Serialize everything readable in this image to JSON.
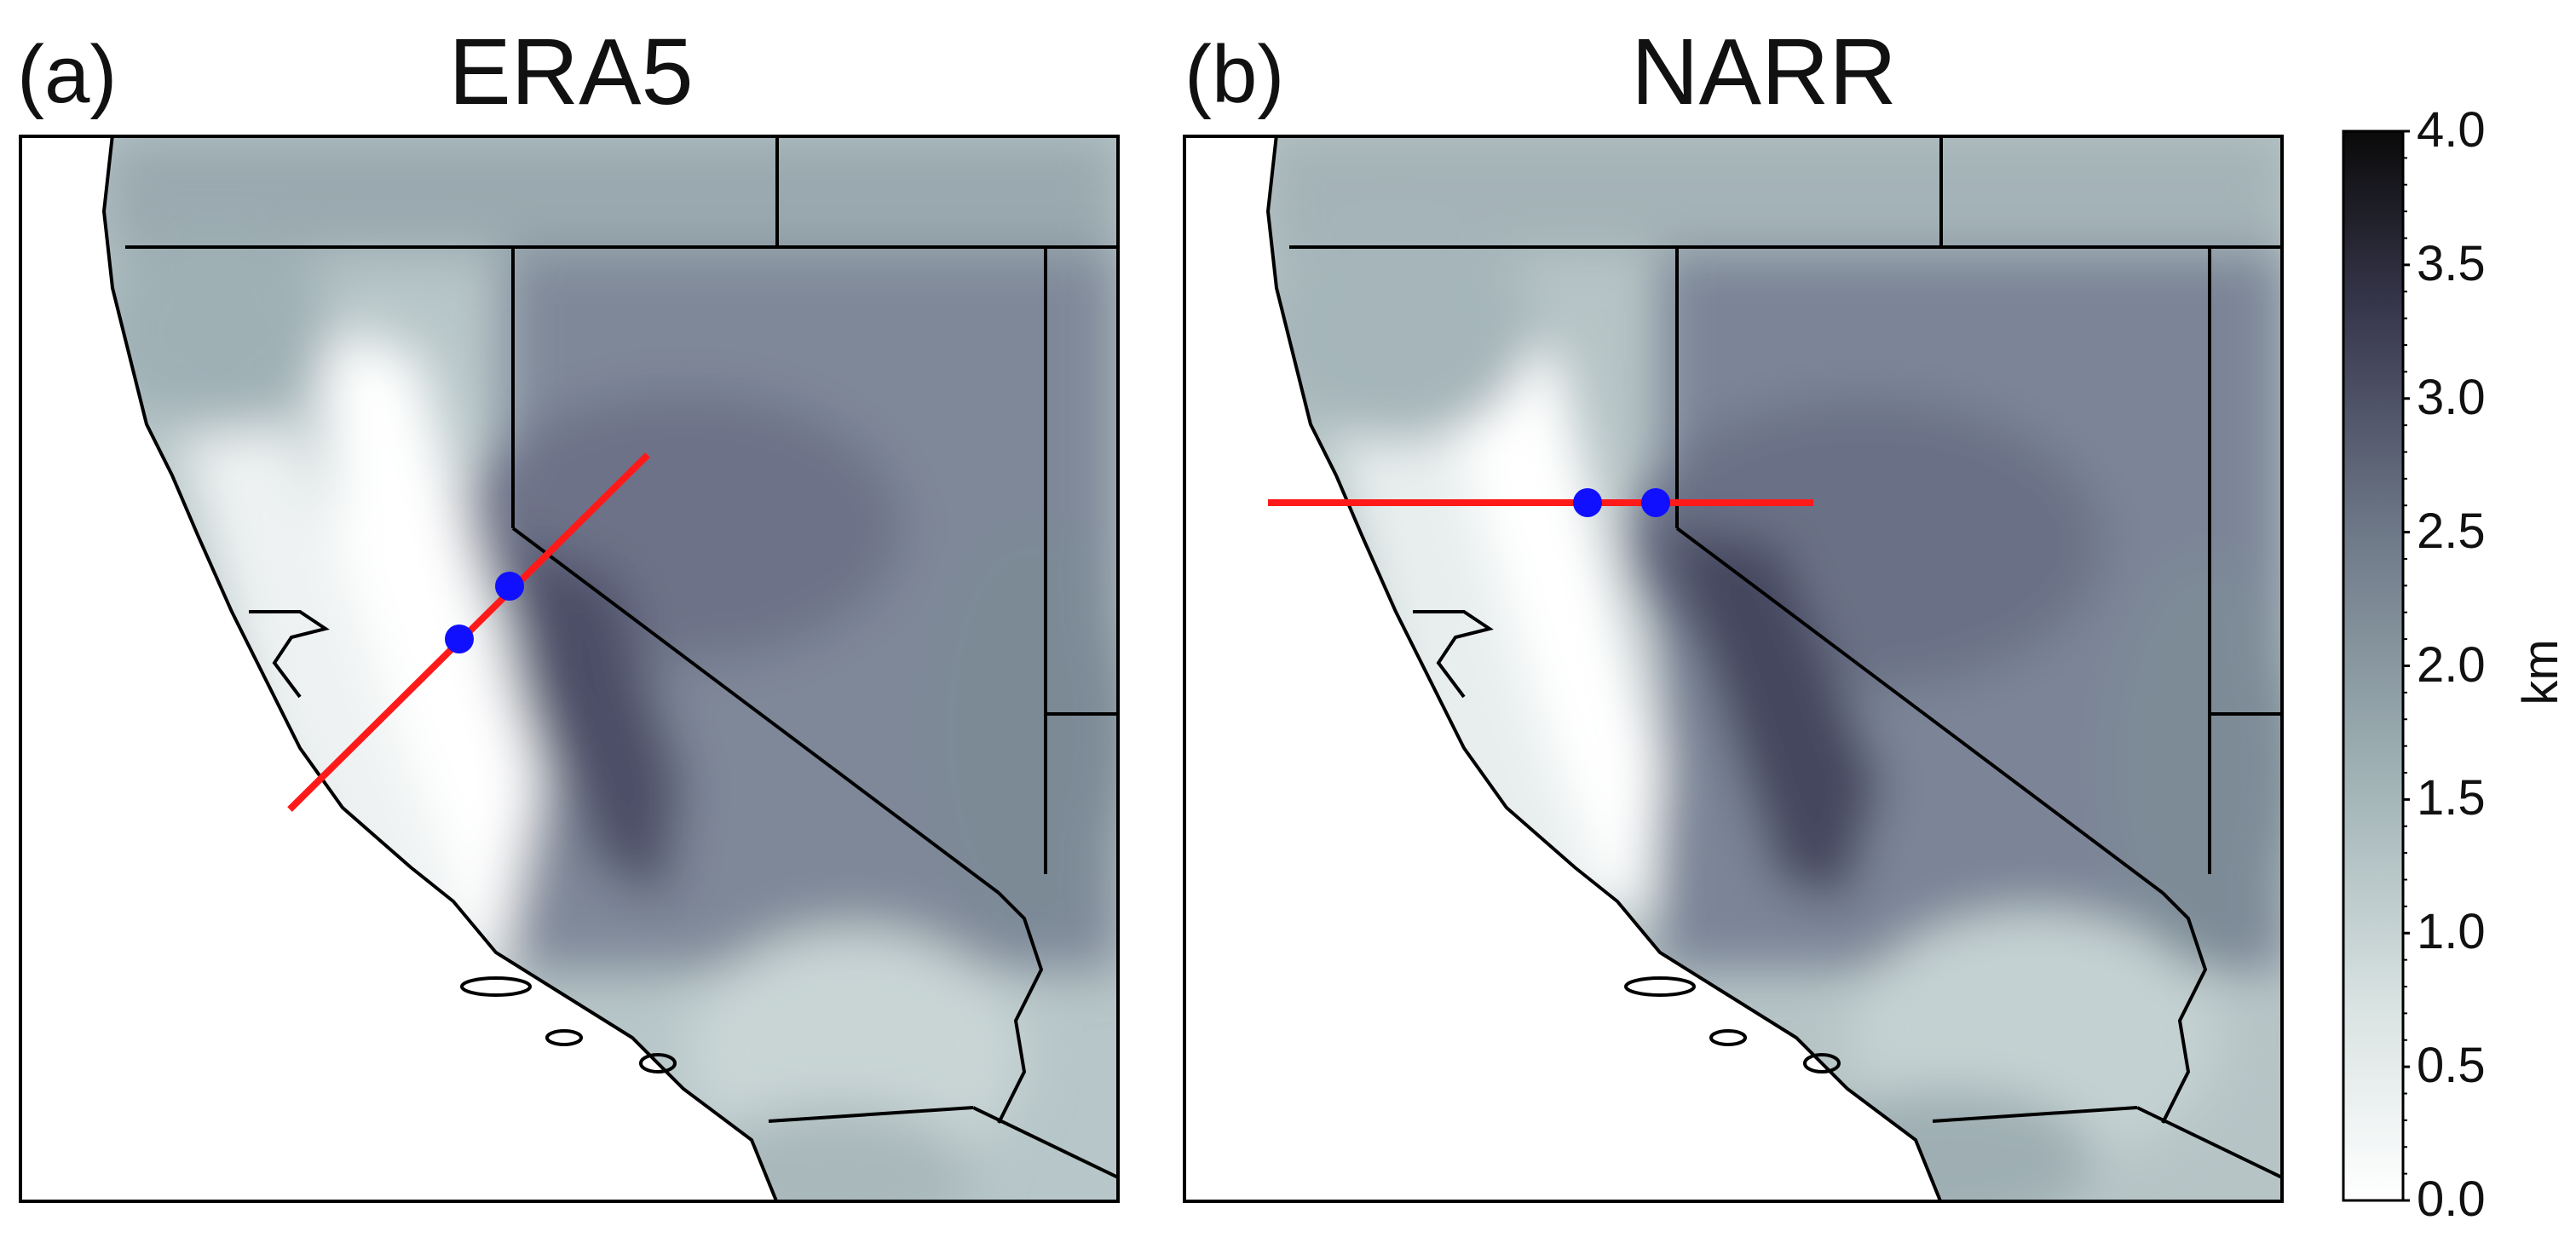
{
  "panels": [
    {
      "letter": "(a)",
      "title": "ERA5"
    },
    {
      "letter": "(b)",
      "title": "NARR"
    }
  ],
  "colorbar": {
    "unit": "km",
    "ticks": [
      "0.0",
      "0.5",
      "1.0",
      "1.5",
      "2.0",
      "2.5",
      "3.0",
      "3.5",
      "4.0"
    ],
    "range": [
      0.0,
      4.0
    ],
    "colors": [
      "#ffffff",
      "#d9e3e2",
      "#9fb1b4",
      "#6f7a89",
      "#3b3b52",
      "#0a0a0a"
    ]
  },
  "colors": {
    "cross_section_line": "#ff1a1a",
    "station_point": "#1010ff",
    "border": "#000000"
  }
}
